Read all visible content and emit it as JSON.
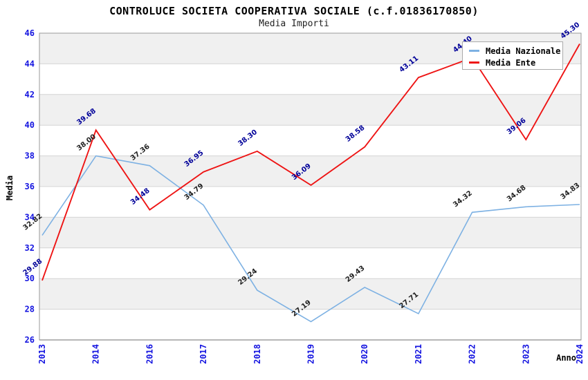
{
  "chart_data": {
    "type": "line",
    "title": "CONTROLUCE SOCIETA COOPERATIVA SOCIALE (c.f.01836170850)",
    "subtitle": "Media Importi",
    "xlabel": "Anno",
    "ylabel": "Media",
    "ylim": [
      26,
      46
    ],
    "ytick_step": 2,
    "yticks": [
      26,
      28,
      30,
      32,
      34,
      36,
      38,
      40,
      42,
      44,
      46
    ],
    "grid": "horizontal gridlines with alternating gray/white bands",
    "legend_position": "top-right inset box",
    "x_tick_rotation": -90,
    "data_label_rotation": -38,
    "categories": [
      "2013",
      "2014",
      "2016",
      "2017",
      "2018",
      "2019",
      "2020",
      "2021",
      "2022",
      "2023",
      "2024"
    ],
    "series": [
      {
        "name": "Media Nazionale",
        "color": "#7db1e3",
        "label_color": "#222222",
        "values": [
          32.82,
          38.0,
          37.36,
          34.79,
          29.24,
          27.19,
          29.43,
          27.71,
          34.32,
          34.68,
          34.83
        ]
      },
      {
        "name": "Media Ente",
        "color": "#ee1414",
        "label_color": "#000099",
        "values": [
          29.88,
          39.68,
          34.48,
          36.95,
          38.3,
          36.09,
          38.58,
          43.11,
          44.4,
          39.06,
          45.3
        ]
      }
    ]
  },
  "colors": {
    "axis_tick_blue": "#1414e0",
    "band_gray": "#f0f0f0",
    "band_white": "#ffffff",
    "gridline": "#d4d4d4",
    "frame": "#9a9a9a",
    "axis_line": "#8a8a8a",
    "legend_border": "#aaaaaa",
    "background": "#ffffff",
    "title_color": "#000000",
    "subtitle_color": "#222222"
  }
}
